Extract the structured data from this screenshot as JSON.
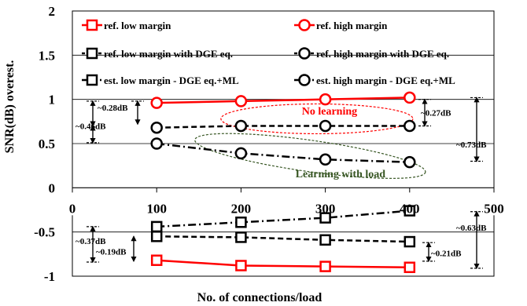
{
  "chart_data": {
    "type": "line",
    "xlabel": "No. of connections/load",
    "ylabel": "SNR(dB) overest.",
    "xlim": [
      0,
      500
    ],
    "ylim": [
      -1,
      2
    ],
    "x_ticks": [
      "0",
      "100",
      "200",
      "300",
      "400",
      "500"
    ],
    "y_ticks": [
      "-1",
      "-0.5",
      "0",
      "0.5",
      "1",
      "1.5",
      "2"
    ],
    "grid": "horizontal",
    "legend_position": "top, inside plot, two columns",
    "series": [
      {
        "name": "ref. low margin",
        "color": "#ff0000",
        "line": "solid",
        "marker": "square",
        "x": [
          100,
          200,
          300,
          400
        ],
        "values": [
          -0.82,
          -0.88,
          -0.89,
          -0.9
        ]
      },
      {
        "name": "ref. high margin",
        "color": "#ff0000",
        "line": "solid",
        "marker": "circle",
        "x": [
          100,
          200,
          300,
          400
        ],
        "values": [
          0.96,
          0.98,
          1.0,
          1.02
        ]
      },
      {
        "name": "ref. low margin with DGE eq.",
        "color": "#000000",
        "line": "dashed",
        "marker": "square",
        "x": [
          100,
          200,
          300,
          400
        ],
        "values": [
          -0.55,
          -0.56,
          -0.59,
          -0.61
        ]
      },
      {
        "name": "ref. high margin with DGE eq.",
        "color": "#000000",
        "line": "dashed",
        "marker": "circle",
        "x": [
          100,
          200,
          300,
          400
        ],
        "values": [
          0.68,
          0.7,
          0.7,
          0.7
        ]
      },
      {
        "name": "est. low margin - DGE eq.+ML",
        "color": "#000000",
        "line": "dashdot",
        "marker": "square",
        "x": [
          100,
          200,
          300,
          400
        ],
        "values": [
          -0.44,
          -0.39,
          -0.34,
          -0.26
        ]
      },
      {
        "name": "est. high margin - DGE eq.+ML",
        "color": "#000000",
        "line": "dashdot",
        "marker": "circle",
        "x": [
          100,
          200,
          300,
          400
        ],
        "values": [
          0.5,
          0.39,
          0.32,
          0.29
        ]
      }
    ],
    "annotations": [
      {
        "text": "~0.28dB",
        "x": 24,
        "y": 0.86
      },
      {
        "text": "~0.46dB",
        "x": 24,
        "y": 0.67
      },
      {
        "text": "~0.27dB",
        "x": 480,
        "y": 0.83
      },
      {
        "text": "~0.73dB",
        "x": 480,
        "y": 0.49
      },
      {
        "text": "~0.63dB",
        "x": 480,
        "y": -0.47
      },
      {
        "text": "~0.37dB",
        "x": 24,
        "y": -0.62
      },
      {
        "text": "~0.19dB",
        "x": 24,
        "y": -0.7
      },
      {
        "text": "~0.21dB",
        "x": 480,
        "y": -0.75
      }
    ],
    "regions": [
      {
        "text": "No learning",
        "color": "#ff0000",
        "cx": 290,
        "cy": 0.78
      },
      {
        "text": "Learning with load",
        "color": "#375623",
        "cx": 300,
        "cy": 0.18
      }
    ]
  }
}
